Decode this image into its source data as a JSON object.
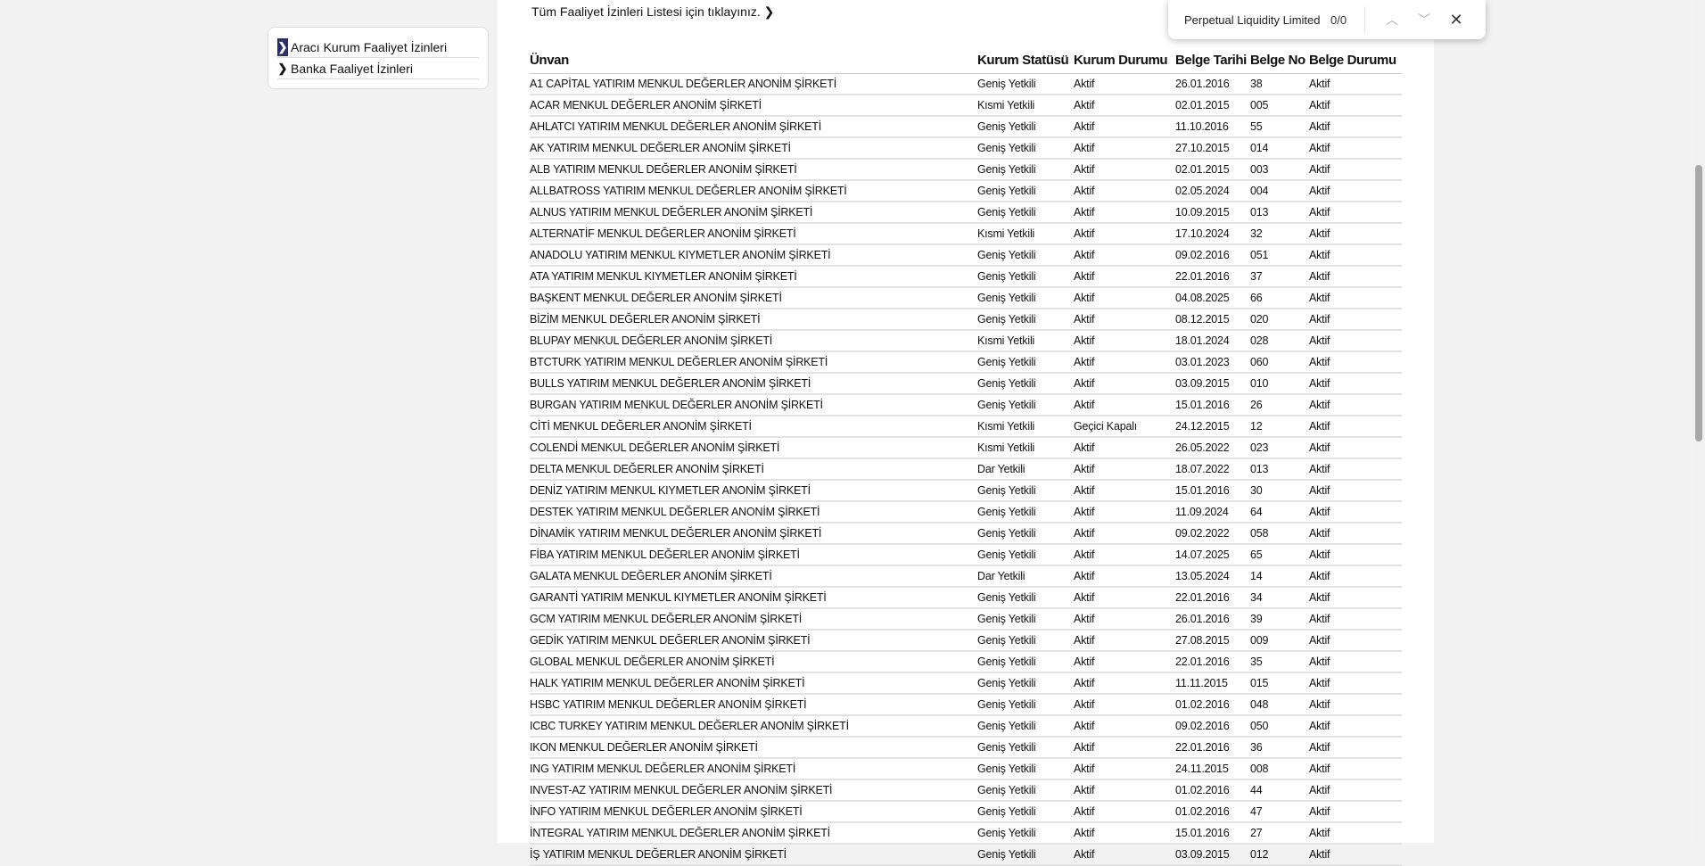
{
  "sidebar": {
    "items": [
      {
        "label": "Aracı Kurum Faaliyet İzinleri",
        "active": true
      },
      {
        "label": "Banka Faaliyet İzinleri",
        "active": false
      }
    ]
  },
  "main": {
    "all_list_link": "Tüm Faaliyet İzinleri Listesi için tıklayınız. ❯"
  },
  "table": {
    "headers": [
      "Ünvan",
      "Kurum Statüsü",
      "Kurum Durumu",
      "Belge Tarihi",
      "Belge No",
      "Belge Durumu"
    ],
    "rows": [
      [
        "A1 CAPİTAL YATIRIM MENKUL DEĞERLER ANONİM ŞİRKETİ",
        "Geniş Yetkili",
        "Aktif",
        "26.01.2016",
        "38",
        "Aktif"
      ],
      [
        "ACAR MENKUL DEĞERLER ANONİM ŞİRKETİ",
        "Kısmi Yetkili",
        "Aktif",
        "02.01.2015",
        "005",
        "Aktif"
      ],
      [
        "AHLATCI YATIRIM MENKUL DEĞERLER ANONİM ŞİRKETİ",
        "Geniş Yetkili",
        "Aktif",
        "11.10.2016",
        "55",
        "Aktif"
      ],
      [
        "AK YATIRIM MENKUL DEĞERLER ANONİM ŞİRKETİ",
        "Geniş Yetkili",
        "Aktif",
        "27.10.2015",
        "014",
        "Aktif"
      ],
      [
        "ALB YATIRIM MENKUL DEĞERLER ANONİM ŞİRKETİ",
        "Geniş Yetkili",
        "Aktif",
        "02.01.2015",
        "003",
        "Aktif"
      ],
      [
        "ALLBATROSS YATIRIM MENKUL DEĞERLER ANONİM ŞİRKETİ",
        "Geniş Yetkili",
        "Aktif",
        "02.05.2024",
        "004",
        "Aktif"
      ],
      [
        "ALNUS YATIRIM MENKUL DEĞERLER ANONİM ŞİRKETİ",
        "Geniş Yetkili",
        "Aktif",
        "10.09.2015",
        "013",
        "Aktif"
      ],
      [
        "ALTERNATİF MENKUL DEĞERLER ANONİM ŞİRKETİ",
        "Kısmi Yetkili",
        "Aktif",
        "17.10.2024",
        "32",
        "Aktif"
      ],
      [
        "ANADOLU YATIRIM MENKUL KIYMETLER ANONİM ŞİRKETİ",
        "Geniş Yetkili",
        "Aktif",
        "09.02.2016",
        "051",
        "Aktif"
      ],
      [
        "ATA YATIRIM MENKUL KIYMETLER ANONİM ŞİRKETİ",
        "Geniş Yetkili",
        "Aktif",
        "22.01.2016",
        "37",
        "Aktif"
      ],
      [
        "BAŞKENT MENKUL DEĞERLER ANONİM ŞİRKETİ",
        "Geniş Yetkili",
        "Aktif",
        "04.08.2025",
        "66",
        "Aktif"
      ],
      [
        "BİZİM MENKUL DEĞERLER ANONİM ŞİRKETİ",
        "Geniş Yetkili",
        "Aktif",
        "08.12.2015",
        "020",
        "Aktif"
      ],
      [
        "BLUPAY MENKUL DEĞERLER ANONİM ŞİRKETİ",
        "Kısmi Yetkili",
        "Aktif",
        "18.01.2024",
        "028",
        "Aktif"
      ],
      [
        "BTCTURK YATIRIM MENKUL DEĞERLER ANONİM ŞİRKETİ",
        "Geniş Yetkili",
        "Aktif",
        "03.01.2023",
        "060",
        "Aktif"
      ],
      [
        "BULLS YATIRIM MENKUL DEĞERLER ANONİM ŞİRKETİ",
        "Geniş Yetkili",
        "Aktif",
        "03.09.2015",
        "010",
        "Aktif"
      ],
      [
        "BURGAN YATIRIM MENKUL DEĞERLER ANONİM ŞİRKETİ",
        "Geniş Yetkili",
        "Aktif",
        "15.01.2016",
        "26",
        "Aktif"
      ],
      [
        "CİTİ MENKUL DEĞERLER ANONİM ŞİRKETİ",
        "Kısmi Yetkili",
        "Geçici Kapalı",
        "24.12.2015",
        "12",
        "Aktif"
      ],
      [
        "COLENDİ MENKUL DEĞERLER ANONİM ŞİRKETİ",
        "Kısmi Yetkili",
        "Aktif",
        "26.05.2022",
        "023",
        "Aktif"
      ],
      [
        "DELTA MENKUL DEĞERLER ANONİM ŞİRKETİ",
        "Dar Yetkili",
        "Aktif",
        "18.07.2022",
        "013",
        "Aktif"
      ],
      [
        "DENİZ YATIRIM MENKUL KIYMETLER ANONİM ŞİRKETİ",
        "Geniş Yetkili",
        "Aktif",
        "15.01.2016",
        "30",
        "Aktif"
      ],
      [
        "DESTEK YATIRIM MENKUL DEĞERLER ANONİM ŞİRKETİ",
        "Geniş Yetkili",
        "Aktif",
        "11.09.2024",
        "64",
        "Aktif"
      ],
      [
        "DİNAMİK YATIRIM MENKUL DEĞERLER ANONİM ŞİRKETİ",
        "Geniş Yetkili",
        "Aktif",
        "09.02.2022",
        "058",
        "Aktif"
      ],
      [
        "FİBA YATIRIM MENKUL DEĞERLER ANONİM ŞİRKETİ",
        "Geniş Yetkili",
        "Aktif",
        "14.07.2025",
        "65",
        "Aktif"
      ],
      [
        "GALATA MENKUL DEĞERLER ANONİM ŞİRKETİ",
        "Dar Yetkili",
        "Aktif",
        "13.05.2024",
        "14",
        "Aktif"
      ],
      [
        "GARANTİ YATIRIM MENKUL KIYMETLER ANONİM ŞİRKETİ",
        "Geniş Yetkili",
        "Aktif",
        "22.01.2016",
        "34",
        "Aktif"
      ],
      [
        "GCM YATIRIM MENKUL DEĞERLER ANONİM ŞİRKETİ",
        "Geniş Yetkili",
        "Aktif",
        "26.01.2016",
        "39",
        "Aktif"
      ],
      [
        "GEDİK YATIRIM MENKUL DEĞERLER ANONİM ŞİRKETİ",
        "Geniş Yetkili",
        "Aktif",
        "27.08.2015",
        "009",
        "Aktif"
      ],
      [
        "GLOBAL MENKUL DEĞERLER ANONİM ŞİRKETİ",
        "Geniş Yetkili",
        "Aktif",
        "22.01.2016",
        "35",
        "Aktif"
      ],
      [
        "HALK YATIRIM MENKUL DEĞERLER ANONİM ŞİRKETİ",
        "Geniş Yetkili",
        "Aktif",
        "11.11.2015",
        "015",
        "Aktif"
      ],
      [
        "HSBC YATIRIM MENKUL DEĞERLER ANONİM ŞİRKETİ",
        "Geniş Yetkili",
        "Aktif",
        "01.02.2016",
        "048",
        "Aktif"
      ],
      [
        "ICBC TURKEY YATIRIM MENKUL DEĞERLER ANONİM ŞİRKETİ",
        "Geniş Yetkili",
        "Aktif",
        "09.02.2016",
        "050",
        "Aktif"
      ],
      [
        "IKON MENKUL DEĞERLER ANONİM ŞİRKETİ",
        "Geniş Yetkili",
        "Aktif",
        "22.01.2016",
        "36",
        "Aktif"
      ],
      [
        "ING YATIRIM MENKUL DEĞERLER ANONİM ŞİRKETİ",
        "Geniş Yetkili",
        "Aktif",
        "24.11.2015",
        "008",
        "Aktif"
      ],
      [
        "INVEST-AZ YATIRIM MENKUL DEĞERLER ANONİM ŞİRKETİ",
        "Geniş Yetkili",
        "Aktif",
        "01.02.2016",
        "44",
        "Aktif"
      ],
      [
        "İNFO YATIRIM MENKUL DEĞERLER ANONİM ŞİRKETİ",
        "Geniş Yetkili",
        "Aktif",
        "01.02.2016",
        "47",
        "Aktif"
      ],
      [
        "İNTEGRAL YATIRIM MENKUL DEĞERLER ANONİM ŞİRKETİ",
        "Geniş Yetkili",
        "Aktif",
        "15.01.2016",
        "27",
        "Aktif"
      ],
      [
        "İŞ YATIRIM MENKUL DEĞERLER ANONİM ŞİRKETİ",
        "Geniş Yetkili",
        "Aktif",
        "03.09.2015",
        "012",
        "Aktif"
      ]
    ]
  },
  "findbar": {
    "query": "Perpetual Liquidity Limited",
    "count": "0/0",
    "icons": [
      "chevron-up-icon",
      "chevron-down-icon",
      "close-icon"
    ]
  },
  "colors": {
    "sidebar_active": "#2b2f6b",
    "background": "#f2f2f2"
  }
}
